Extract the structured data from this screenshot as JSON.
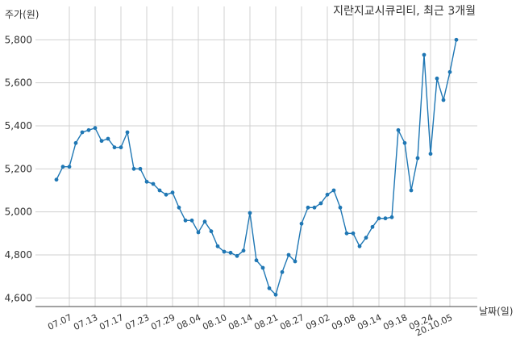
{
  "chart_data": {
    "type": "line",
    "title": "지란지교시큐리티, 최근 3개월",
    "ylabel": "주가(원)",
    "xlabel": "날짜(일)",
    "ylim": [
      4560,
      5880
    ],
    "y_ticks": [
      4600,
      4800,
      5000,
      5200,
      5400,
      5600,
      5800
    ],
    "y_tick_labels": [
      "4,600",
      "4,800",
      "5,000",
      "5,200",
      "5,400",
      "5,600",
      "5,800"
    ],
    "grid": "vertical and horizontal",
    "colors": {
      "line": "#1f77b4",
      "grid": "#d0d0d0",
      "text": "#333333"
    },
    "x_ticks": [
      {
        "index": 2,
        "label": "07.07"
      },
      {
        "index": 6,
        "label": "07.13"
      },
      {
        "index": 10,
        "label": "07.17"
      },
      {
        "index": 14,
        "label": "07.23"
      },
      {
        "index": 18,
        "label": "07.29"
      },
      {
        "index": 22,
        "label": "08.04"
      },
      {
        "index": 26,
        "label": "08.10"
      },
      {
        "index": 30,
        "label": "08.14"
      },
      {
        "index": 34,
        "label": "08.21"
      },
      {
        "index": 38,
        "label": "08.27"
      },
      {
        "index": 42,
        "label": "09.02"
      },
      {
        "index": 46,
        "label": "09.08"
      },
      {
        "index": 50,
        "label": "09.14"
      },
      {
        "index": 54,
        "label": "09.18"
      },
      {
        "index": 58,
        "label": "09.24"
      },
      {
        "index": 61,
        "label": "20.10.05"
      }
    ],
    "series": [
      {
        "values": [
          5150,
          5210,
          5210,
          5320,
          5370,
          5380,
          5390,
          5330,
          5340,
          5300,
          5300,
          5370,
          5200,
          5200,
          5140,
          5130,
          5100,
          5080,
          5090,
          5020,
          4960,
          4960,
          4905,
          4955,
          4910,
          4840,
          4815,
          4810,
          4795,
          4820,
          4995,
          4775,
          4740,
          4645,
          4615,
          4720,
          4800,
          4770,
          4945,
          5020,
          5020,
          5040,
          5080,
          5100,
          5020,
          4900,
          4900,
          4840,
          4880,
          4930,
          4970,
          4970,
          4975,
          5380,
          5320,
          5100,
          5250,
          5730,
          5270,
          5620,
          5520,
          5650,
          5800
        ]
      }
    ]
  }
}
